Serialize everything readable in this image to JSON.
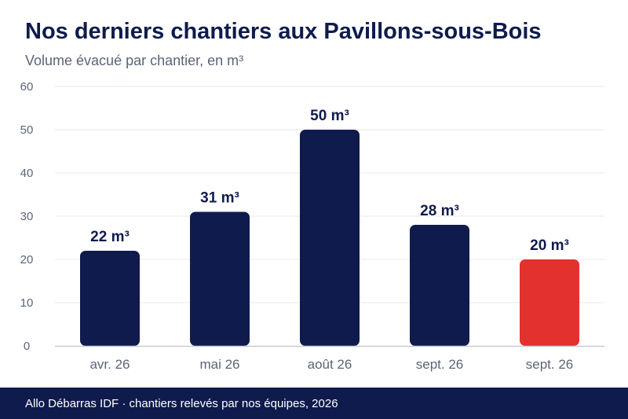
{
  "header": {
    "title": "Nos derniers chantiers aux Pavillons-sous-Bois",
    "subtitle": "Volume évacué par chantier, en m³"
  },
  "footer": {
    "text": "Allo Débarras IDF · chantiers relevés par nos équipes, 2026"
  },
  "colors": {
    "bar": "#0f1b4d",
    "highlight": "#e3312d",
    "grid": "#e8e8ee",
    "axis": "#c9c9d6",
    "tick_text": "#5b6478",
    "label_text": "#0f1b4d"
  },
  "chart_data": {
    "type": "bar",
    "categories": [
      "avr. 26",
      "mai 26",
      "août 26",
      "sept. 26",
      "sept. 26"
    ],
    "values": [
      22,
      31,
      50,
      28,
      20
    ],
    "data_labels": [
      "22 m³",
      "31 m³",
      "50 m³",
      "28 m³",
      "20 m³"
    ],
    "highlight_index": 4,
    "ylim": [
      0,
      60
    ],
    "yticks": [
      0,
      10,
      20,
      30,
      40,
      50,
      60
    ],
    "grid": true
  }
}
